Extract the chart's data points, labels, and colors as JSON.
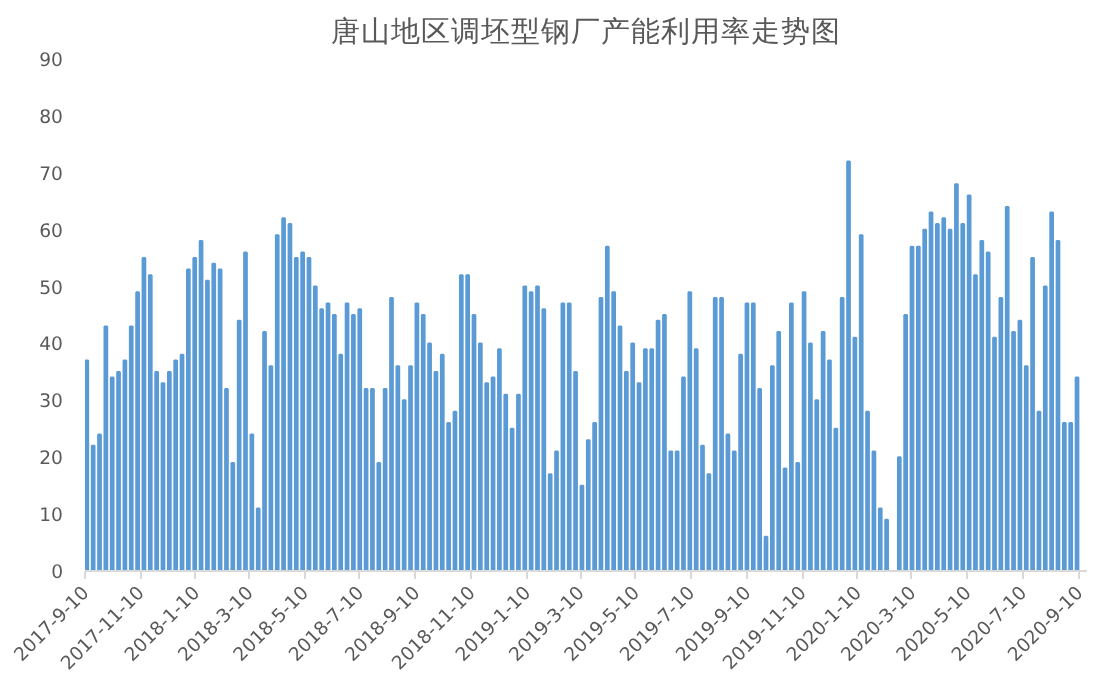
{
  "chart_data": {
    "type": "bar",
    "title": "唐山地区调坯型钢厂产能利用率走势图",
    "color": "#5b9bd5",
    "x": [
      "2017-09-12",
      "2017-09-19",
      "2017-09-26",
      "2017-10-03",
      "2017-10-10",
      "2017-10-17",
      "2017-10-24",
      "2017-10-31",
      "2017-11-07",
      "2017-11-14",
      "2017-11-21",
      "2017-11-28",
      "2017-12-05",
      "2017-12-12",
      "2017-12-19",
      "2017-12-26",
      "2018-01-02",
      "2018-01-09",
      "2018-01-16",
      "2018-01-23",
      "2018-01-30",
      "2018-02-06",
      "2018-02-13",
      "2018-02-20",
      "2018-02-27",
      "2018-03-06",
      "2018-03-13",
      "2018-03-20",
      "2018-03-27",
      "2018-04-03",
      "2018-04-10",
      "2018-04-17",
      "2018-04-24",
      "2018-05-01",
      "2018-05-08",
      "2018-05-15",
      "2018-05-22",
      "2018-05-29",
      "2018-06-05",
      "2018-06-12",
      "2018-06-19",
      "2018-06-26",
      "2018-07-03",
      "2018-07-10",
      "2018-07-17",
      "2018-07-24",
      "2018-07-31",
      "2018-08-07",
      "2018-08-14",
      "2018-08-21",
      "2018-08-28",
      "2018-09-04",
      "2018-09-11",
      "2018-09-18",
      "2018-09-25",
      "2018-10-02",
      "2018-10-09",
      "2018-10-16",
      "2018-10-23",
      "2018-10-30",
      "2018-11-06",
      "2018-11-13",
      "2018-11-20",
      "2018-11-27",
      "2018-12-04",
      "2018-12-11",
      "2018-12-18",
      "2018-12-25",
      "2019-01-01",
      "2019-01-08",
      "2019-01-15",
      "2019-01-22",
      "2019-01-29",
      "2019-02-05",
      "2019-02-12",
      "2019-02-19",
      "2019-02-26",
      "2019-03-05",
      "2019-03-12",
      "2019-03-19",
      "2019-03-26",
      "2019-04-02",
      "2019-04-09",
      "2019-04-16",
      "2019-04-23",
      "2019-04-30",
      "2019-05-07",
      "2019-05-14",
      "2019-05-21",
      "2019-05-28",
      "2019-06-04",
      "2019-06-11",
      "2019-06-18",
      "2019-06-25",
      "2019-07-02",
      "2019-07-09",
      "2019-07-16",
      "2019-07-23",
      "2019-07-30",
      "2019-08-06",
      "2019-08-13",
      "2019-08-20",
      "2019-08-27",
      "2019-09-03",
      "2019-09-10",
      "2019-09-17",
      "2019-09-24",
      "2019-10-01",
      "2019-10-08",
      "2019-10-15",
      "2019-10-22",
      "2019-10-29",
      "2019-11-05",
      "2019-11-12",
      "2019-11-19",
      "2019-11-26",
      "2019-12-03",
      "2019-12-10",
      "2019-12-17",
      "2019-12-24",
      "2019-12-31",
      "2020-01-07",
      "2020-01-14",
      "2020-01-21",
      "2020-01-28",
      "2020-02-04",
      "2020-02-11",
      "2020-02-18",
      "2020-02-25",
      "2020-03-03",
      "2020-03-10",
      "2020-03-17",
      "2020-03-24",
      "2020-03-31",
      "2020-04-07",
      "2020-04-14",
      "2020-04-21",
      "2020-04-28",
      "2020-05-05",
      "2020-05-12",
      "2020-05-19",
      "2020-05-26",
      "2020-06-02",
      "2020-06-09",
      "2020-06-16",
      "2020-06-23",
      "2020-06-30",
      "2020-07-07",
      "2020-07-14",
      "2020-07-21",
      "2020-07-28",
      "2020-08-04",
      "2020-08-11",
      "2020-08-18",
      "2020-08-25",
      "2020-09-01",
      "2020-09-08"
    ],
    "values": [
      37,
      22,
      24,
      43,
      34,
      35,
      37,
      43,
      49,
      55,
      52,
      35,
      33,
      35,
      37,
      38,
      53,
      55,
      58,
      51,
      54,
      53,
      32,
      19,
      44,
      56,
      24,
      11,
      42,
      36,
      59,
      62,
      61,
      55,
      56,
      55,
      50,
      46,
      47,
      45,
      38,
      47,
      45,
      46,
      32,
      32,
      19,
      32,
      48,
      36,
      30,
      36,
      47,
      45,
      40,
      35,
      38,
      26,
      28,
      52,
      52,
      45,
      40,
      33,
      34,
      39,
      31,
      25,
      31,
      50,
      49,
      50,
      46,
      17,
      21,
      47,
      47,
      35,
      15,
      23,
      26,
      48,
      57,
      49,
      43,
      35,
      40,
      33,
      39,
      39,
      44,
      45,
      21,
      21,
      34,
      49,
      39,
      22,
      17,
      48,
      48,
      24,
      21,
      38,
      47,
      47,
      32,
      6,
      36,
      42,
      18,
      47,
      19,
      49,
      40,
      30,
      42,
      37,
      25,
      48,
      72,
      41,
      59,
      28,
      21,
      11,
      9,
      null,
      20,
      45,
      57,
      57,
      60,
      63,
      61,
      62,
      60,
      68,
      61,
      66,
      52,
      58,
      56,
      41,
      48,
      64,
      42,
      44,
      36,
      55,
      28,
      50,
      63,
      58,
      26,
      26,
      34
    ],
    "xlim": [
      "2017-09-10",
      "2020-09-19"
    ],
    "xticks": [
      {
        "value": "2017-09-10",
        "label": "2017-9-10"
      },
      {
        "value": "2017-11-10",
        "label": "2017-11-10"
      },
      {
        "value": "2018-01-10",
        "label": "2018-1-10"
      },
      {
        "value": "2018-03-10",
        "label": "2018-3-10"
      },
      {
        "value": "2018-05-10",
        "label": "2018-5-10"
      },
      {
        "value": "2018-07-10",
        "label": "2018-7-10"
      },
      {
        "value": "2018-09-10",
        "label": "2018-9-10"
      },
      {
        "value": "2018-11-10",
        "label": "2018-11-10"
      },
      {
        "value": "2019-01-10",
        "label": "2019-1-10"
      },
      {
        "value": "2019-03-10",
        "label": "2019-3-10"
      },
      {
        "value": "2019-05-10",
        "label": "2019-5-10"
      },
      {
        "value": "2019-07-10",
        "label": "2019-7-10"
      },
      {
        "value": "2019-09-10",
        "label": "2019-9-10"
      },
      {
        "value": "2019-11-10",
        "label": "2019-11-10"
      },
      {
        "value": "2020-01-10",
        "label": "2020-1-10"
      },
      {
        "value": "2020-03-10",
        "label": "2020-3-10"
      },
      {
        "value": "2020-05-10",
        "label": "2020-5-10"
      },
      {
        "value": "2020-07-10",
        "label": "2020-7-10"
      },
      {
        "value": "2020-09-10",
        "label": "2020-9-10"
      }
    ],
    "ylim": [
      0,
      90
    ],
    "yticks": [
      0,
      10,
      20,
      30,
      40,
      50,
      60,
      70,
      80,
      90
    ],
    "grid": false
  }
}
